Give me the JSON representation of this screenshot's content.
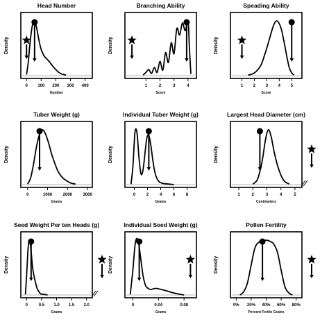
{
  "chart_data": [
    {
      "type": "line",
      "title": "Head Number",
      "xlabel": "Number",
      "ylabel": "Density",
      "xlim": [
        -20,
        430
      ],
      "ylim": [
        0,
        1
      ],
      "x_ticks": [
        0,
        100,
        200,
        300,
        400
      ],
      "x_tick_labels": [
        "0",
        "100",
        "200",
        "300",
        "400"
      ],
      "series": [
        {
          "x": [
            0,
            12,
            25,
            40,
            55,
            70,
            85,
            100,
            120,
            140,
            160,
            180,
            200,
            220,
            240,
            270
          ],
          "y": [
            0.02,
            0.25,
            0.62,
            0.92,
            1.0,
            0.86,
            0.64,
            0.48,
            0.36,
            0.3,
            0.24,
            0.17,
            0.11,
            0.06,
            0.03,
            0.01
          ]
        }
      ],
      "star_x": 0,
      "marker_x": 55,
      "break": false
    },
    {
      "type": "line",
      "title": "Branching Ability",
      "xlabel": "Score",
      "ylabel": "Density",
      "xlim": [
        -0.3,
        4.4
      ],
      "ylim": [
        0,
        1
      ],
      "x_ticks": [
        1,
        2,
        3,
        4
      ],
      "x_tick_labels": [
        "1",
        "2",
        "3",
        "4"
      ],
      "series": [
        {
          "x": [
            0.8,
            1.0,
            1.2,
            1.4,
            1.6,
            1.8,
            2.0,
            2.2,
            2.4,
            2.6,
            2.8,
            3.0,
            3.2,
            3.4,
            3.6,
            3.8,
            4.0,
            4.1,
            4.2
          ],
          "y": [
            0.01,
            0.06,
            0.11,
            0.04,
            0.15,
            0.06,
            0.26,
            0.1,
            0.42,
            0.24,
            0.6,
            0.4,
            0.86,
            0.74,
            0.96,
            0.82,
            1.0,
            0.5,
            0.03
          ]
        }
      ],
      "star_x": 0,
      "marker_x": 3.9,
      "break": false
    },
    {
      "type": "line",
      "title": "Speading Ability",
      "xlabel": "Score",
      "ylabel": "Density",
      "xlim": [
        0.3,
        5.6
      ],
      "ylim": [
        0,
        1
      ],
      "x_ticks": [
        1,
        2,
        3,
        4,
        5
      ],
      "x_tick_labels": [
        "1",
        "2",
        "3",
        "4",
        "5"
      ],
      "series": [
        {
          "x": [
            1.5,
            2.0,
            2.5,
            2.8,
            3.1,
            3.4,
            3.6,
            3.8,
            4.0,
            4.2,
            4.4,
            4.6,
            4.8,
            5.0,
            5.2
          ],
          "y": [
            0.01,
            0.05,
            0.18,
            0.36,
            0.58,
            0.82,
            0.95,
            1.0,
            0.95,
            0.82,
            0.6,
            0.36,
            0.15,
            0.05,
            0.01
          ]
        }
      ],
      "star_x": 1,
      "marker_x": 5,
      "break": false
    },
    {
      "type": "line",
      "title": "Tuber Weight (g)",
      "xlabel": "Grams",
      "ylabel": "Density",
      "xlim": [
        -200,
        3100
      ],
      "ylim": [
        0,
        1
      ],
      "x_ticks": [
        0,
        1000,
        2000,
        3000
      ],
      "x_tick_labels": [
        "0",
        "1000",
        "2000",
        "3000"
      ],
      "series": [
        {
          "x": [
            0,
            150,
            300,
            450,
            600,
            750,
            900,
            1050,
            1200,
            1350,
            1500,
            1650,
            1800,
            1950,
            2150,
            2400
          ],
          "y": [
            0.01,
            0.12,
            0.38,
            0.7,
            0.92,
            1.0,
            0.92,
            0.76,
            0.56,
            0.4,
            0.26,
            0.17,
            0.11,
            0.07,
            0.03,
            0.01
          ]
        }
      ],
      "star_x": null,
      "marker_x": 600,
      "break": false
    },
    {
      "type": "line",
      "title": "Individual Tuber Weight (g)",
      "xlabel": "Grams",
      "ylabel": "Density",
      "xlim": [
        -1,
        9
      ],
      "ylim": [
        0,
        1
      ],
      "x_ticks": [
        0,
        2,
        4,
        6,
        8
      ],
      "x_tick_labels": [
        "0",
        "2",
        "4",
        "6",
        "8"
      ],
      "series": [
        {
          "x": [
            -0.5,
            -0.2,
            0.1,
            0.4,
            0.7,
            1.0,
            1.3,
            1.6,
            1.9,
            2.2,
            2.5,
            2.8,
            3.1,
            3.4,
            3.8,
            4.4,
            5.2,
            6.0
          ],
          "y": [
            0.01,
            0.35,
            0.95,
            0.95,
            0.5,
            0.2,
            0.25,
            0.55,
            0.85,
            0.9,
            0.72,
            0.45,
            0.24,
            0.12,
            0.05,
            0.02,
            0.01,
            0.0
          ]
        }
      ],
      "star_x": null,
      "marker_x": 2.2,
      "break": false
    },
    {
      "type": "line",
      "title": "Largest Head Diameter (cm)",
      "xlabel": "Centimeters",
      "ylabel": "Density",
      "xlim": [
        0.6,
        5.3
      ],
      "ylim": [
        0,
        1
      ],
      "x_ticks": [
        1,
        2,
        3,
        4,
        5
      ],
      "x_tick_labels": [
        "1",
        "2",
        "3",
        "4",
        "5"
      ],
      "series": [
        {
          "x": [
            2.0,
            2.3,
            2.5,
            2.7,
            2.9,
            3.1,
            3.3,
            3.5,
            3.7,
            3.9,
            4.1,
            4.3,
            4.6
          ],
          "y": [
            0.01,
            0.08,
            0.24,
            0.48,
            0.82,
            1.0,
            0.88,
            0.62,
            0.4,
            0.24,
            0.12,
            0.05,
            0.01
          ]
        }
      ],
      "star_x": 8,
      "marker_x": 2.5,
      "break": true
    },
    {
      "type": "line",
      "title": "Seed Weight Per ten Heads (g)",
      "xlabel": "Grams",
      "ylabel": "Density",
      "xlim": [
        -0.1,
        2.1
      ],
      "ylim": [
        0,
        1
      ],
      "x_ticks": [
        0,
        0.5,
        1.0,
        1.5,
        2.0
      ],
      "x_tick_labels": [
        "0",
        "0.5",
        "1.0",
        "1.5",
        "2.0"
      ],
      "series": [
        {
          "x": [
            -0.04,
            0.0,
            0.05,
            0.1,
            0.15,
            0.2,
            0.25,
            0.3,
            0.35,
            0.4,
            0.45,
            0.5,
            0.6,
            0.7
          ],
          "y": [
            0.01,
            0.35,
            0.85,
            1.0,
            0.8,
            0.5,
            0.34,
            0.22,
            0.12,
            0.07,
            0.03,
            0.015,
            0.01,
            0.0
          ]
        }
      ],
      "star_x": 5,
      "marker_x": 0.15,
      "break": true
    },
    {
      "type": "line",
      "title": "Individual Seed Weight (g)",
      "xlabel": "Grams",
      "ylabel": "Density",
      "xlim": [
        -0.008,
        0.095
      ],
      "ylim": [
        0,
        1
      ],
      "x_ticks": [
        0,
        0.04,
        0.08
      ],
      "x_tick_labels": [
        "0",
        "0.04",
        "0.08"
      ],
      "series": [
        {
          "x": [
            -0.004,
            0.0,
            0.004,
            0.008,
            0.012,
            0.016,
            0.02,
            0.024,
            0.028,
            0.036,
            0.048,
            0.06,
            0.07,
            0.08
          ],
          "y": [
            0.01,
            0.45,
            0.96,
            1.0,
            0.7,
            0.35,
            0.17,
            0.12,
            0.1,
            0.12,
            0.09,
            0.05,
            0.02,
            0.0
          ]
        }
      ],
      "star_x": 0.09,
      "marker_x": 0.01,
      "break": false
    },
    {
      "type": "line",
      "title": "Pollen Fertility",
      "xlabel": "Percent Fertile Grains",
      "ylabel": "Density",
      "xlim": [
        -4,
        84
      ],
      "ylim": [
        0,
        1
      ],
      "x_ticks": [
        0,
        20,
        40,
        60,
        80
      ],
      "x_tick_labels": [
        "0%",
        "20%",
        "40%",
        "60%",
        "80%"
      ],
      "series": [
        {
          "x": [
            5,
            10,
            15,
            20,
            25,
            30,
            35,
            40,
            45,
            50,
            55,
            60,
            65,
            70,
            75
          ],
          "y": [
            0.0,
            0.06,
            0.22,
            0.55,
            0.86,
            0.96,
            0.98,
            1.0,
            0.98,
            0.93,
            0.78,
            0.45,
            0.15,
            0.04,
            0.0
          ]
        }
      ],
      "star_x": 100,
      "marker_x": 35,
      "break": false
    }
  ],
  "colors": {
    "line": "#000000",
    "baseline": "#b5b5b5",
    "background": "#ffffff"
  },
  "icons": {
    "star": "star-icon",
    "dot": "dot-marker-icon",
    "arrow": "down-arrow-icon"
  }
}
